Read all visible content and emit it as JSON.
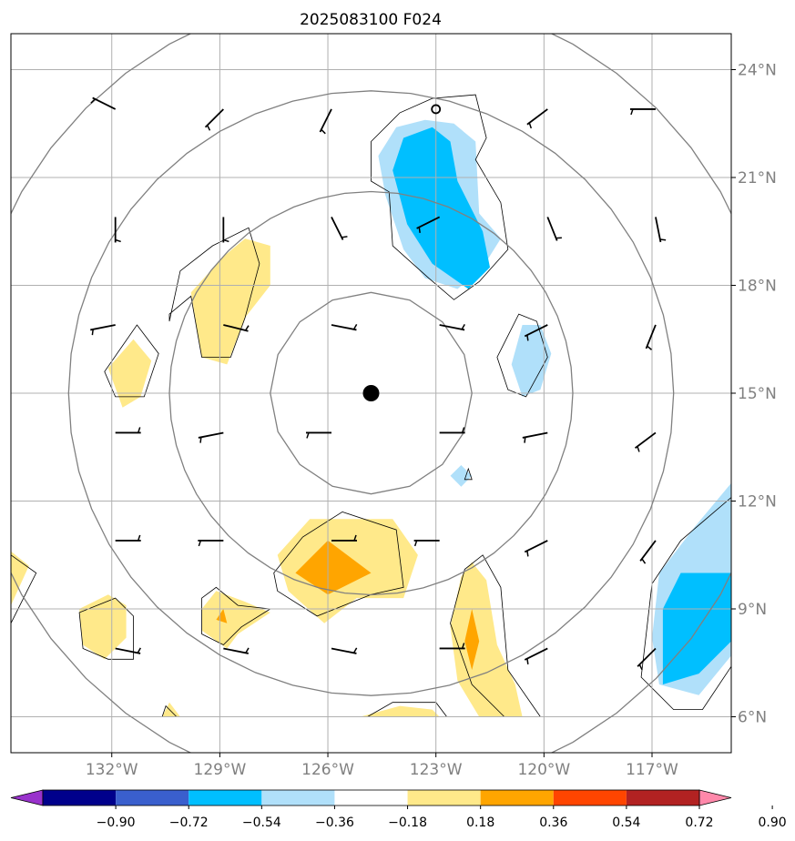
{
  "chart_data": {
    "type": "map-contour",
    "title": "2025083100 F024",
    "xlim": [
      -134.8,
      -114.8
    ],
    "ylim": [
      5.0,
      25.0
    ],
    "lon_ticks": [
      -132,
      -129,
      -126,
      -123,
      -120,
      -117
    ],
    "lon_tick_labels": [
      "132°W",
      "129°W",
      "126°W",
      "123°W",
      "120°W",
      "117°W"
    ],
    "lat_ticks": [
      6,
      9,
      12,
      15,
      18,
      21,
      24
    ],
    "lat_tick_labels": [
      "6°N",
      "9°N",
      "12°N",
      "15°N",
      "18°N",
      "21°N",
      "24°N"
    ],
    "grid": true,
    "center": {
      "lon": -124.8,
      "lat": 15.0
    },
    "range_ring_radii_deg": [
      2.8,
      5.6,
      8.4,
      11.2
    ],
    "storm_track": [
      {
        "lon": -123.0,
        "lat": 22.9
      }
    ],
    "colorbar": {
      "levels": [
        -0.9,
        -0.72,
        -0.54,
        -0.36,
        -0.18,
        0.18,
        0.36,
        0.54,
        0.72,
        0.9
      ],
      "labels": [
        "−0.90",
        "−0.72",
        "−0.54",
        "−0.36",
        "−0.18",
        "0.18",
        "0.36",
        "0.54",
        "0.72",
        "0.90"
      ],
      "colors": [
        "#9932cc",
        "#00008b",
        "#3a5fcd",
        "#00bfff",
        "#b0e0fa",
        "#ffffff",
        "#ffe98a",
        "#ffa500",
        "#ff4500",
        "#b22222",
        "#ff88aa"
      ]
    },
    "regions": [
      {
        "level": 4,
        "pts": [
          [
            -123.3,
            22.6
          ],
          [
            -122.5,
            22.5
          ],
          [
            -121.9,
            22.0
          ],
          [
            -121.8,
            20.0
          ],
          [
            -121.2,
            19.3
          ],
          [
            -121.7,
            18.5
          ],
          [
            -122.4,
            17.9
          ],
          [
            -123.3,
            18.2
          ],
          [
            -123.9,
            19.0
          ],
          [
            -124.4,
            20.5
          ],
          [
            -124.6,
            21.6
          ],
          [
            -124.1,
            22.4
          ]
        ]
      },
      {
        "level": 3,
        "pts": [
          [
            -123.1,
            22.4
          ],
          [
            -122.6,
            22.0
          ],
          [
            -122.4,
            20.9
          ],
          [
            -121.7,
            19.5
          ],
          [
            -121.5,
            18.5
          ],
          [
            -122.1,
            17.9
          ],
          [
            -123.1,
            18.6
          ],
          [
            -123.8,
            19.7
          ],
          [
            -124.2,
            21.2
          ],
          [
            -123.9,
            22.1
          ]
        ]
      },
      {
        "level": 4,
        "pts": [
          [
            -120.6,
            16.9
          ],
          [
            -120.1,
            16.9
          ],
          [
            -119.8,
            16.1
          ],
          [
            -120.1,
            15.1
          ],
          [
            -120.6,
            14.9
          ],
          [
            -120.9,
            15.8
          ]
        ]
      },
      {
        "level": 4,
        "pts": [
          [
            -122.3,
            13.0
          ],
          [
            -122.0,
            12.7
          ],
          [
            -122.3,
            12.4
          ],
          [
            -122.6,
            12.7
          ]
        ]
      },
      {
        "level": 4,
        "pts": [
          [
            -114.8,
            12.5
          ],
          [
            -115.8,
            11.3
          ],
          [
            -116.8,
            10.0
          ],
          [
            -117.0,
            8.2
          ],
          [
            -116.8,
            6.9
          ],
          [
            -115.7,
            6.6
          ],
          [
            -114.8,
            7.7
          ]
        ]
      },
      {
        "level": 3,
        "pts": [
          [
            -114.8,
            10.0
          ],
          [
            -116.2,
            10.0
          ],
          [
            -116.7,
            9.0
          ],
          [
            -116.7,
            6.9
          ],
          [
            -115.7,
            7.2
          ],
          [
            -114.8,
            8.1
          ]
        ]
      },
      {
        "level": 6,
        "pts": [
          [
            -128.3,
            19.3
          ],
          [
            -127.6,
            19.1
          ],
          [
            -127.6,
            18.0
          ],
          [
            -128.3,
            17.1
          ],
          [
            -128.8,
            15.8
          ],
          [
            -129.5,
            16.0
          ],
          [
            -129.8,
            17.8
          ],
          [
            -128.9,
            18.8
          ]
        ]
      },
      {
        "level": 6,
        "pts": [
          [
            -131.4,
            16.5
          ],
          [
            -130.9,
            15.9
          ],
          [
            -131.2,
            14.9
          ],
          [
            -131.7,
            14.6
          ],
          [
            -132.1,
            15.7
          ]
        ]
      },
      {
        "level": 6,
        "pts": [
          [
            -126.5,
            11.5
          ],
          [
            -124.2,
            11.5
          ],
          [
            -123.5,
            10.5
          ],
          [
            -123.9,
            9.3
          ],
          [
            -125.2,
            9.3
          ],
          [
            -126.1,
            8.6
          ],
          [
            -127.1,
            9.5
          ],
          [
            -127.4,
            10.5
          ]
        ]
      },
      {
        "level": 7,
        "pts": [
          [
            -126.0,
            10.9
          ],
          [
            -124.8,
            10.0
          ],
          [
            -126.0,
            9.4
          ],
          [
            -126.9,
            10.0
          ]
        ]
      },
      {
        "level": 6,
        "pts": [
          [
            -122.0,
            10.3
          ],
          [
            -121.6,
            9.8
          ],
          [
            -121.3,
            8.0
          ],
          [
            -120.8,
            6.9
          ],
          [
            -120.6,
            6.0
          ],
          [
            -121.8,
            6.0
          ],
          [
            -122.4,
            7.0
          ],
          [
            -122.6,
            8.5
          ],
          [
            -122.3,
            9.9
          ]
        ]
      },
      {
        "level": 7,
        "pts": [
          [
            -122.0,
            9.0
          ],
          [
            -121.8,
            8.1
          ],
          [
            -122.0,
            7.3
          ],
          [
            -122.2,
            8.1
          ]
        ]
      },
      {
        "level": 6,
        "pts": [
          [
            -129.1,
            9.5
          ],
          [
            -128.3,
            9.2
          ],
          [
            -127.6,
            8.9
          ],
          [
            -128.5,
            8.3
          ],
          [
            -128.8,
            7.9
          ],
          [
            -129.5,
            8.4
          ],
          [
            -129.5,
            9.0
          ]
        ]
      },
      {
        "level": 7,
        "pts": [
          [
            -128.9,
            9.0
          ],
          [
            -128.8,
            8.6
          ],
          [
            -129.1,
            8.7
          ]
        ]
      },
      {
        "level": 6,
        "pts": [
          [
            -132.1,
            9.4
          ],
          [
            -131.6,
            9.1
          ],
          [
            -131.6,
            8.2
          ],
          [
            -132.2,
            7.6
          ],
          [
            -132.8,
            8.0
          ],
          [
            -132.9,
            9.0
          ]
        ]
      },
      {
        "level": 6,
        "pts": [
          [
            -134.8,
            10.6
          ],
          [
            -134.3,
            10.2
          ],
          [
            -134.8,
            9.1
          ]
        ]
      },
      {
        "level": 6,
        "pts": [
          [
            -125.1,
            6.0
          ],
          [
            -124.0,
            6.3
          ],
          [
            -123.1,
            6.2
          ],
          [
            -122.9,
            6.0
          ]
        ]
      },
      {
        "level": 6,
        "pts": [
          [
            -130.6,
            6.0
          ],
          [
            -130.4,
            6.4
          ],
          [
            -130.1,
            6.0
          ]
        ]
      }
    ],
    "contours": [
      [
        [
          -123.1,
          23.2
        ],
        [
          -121.9,
          23.3
        ],
        [
          -121.6,
          22.1
        ],
        [
          -121.9,
          21.5
        ],
        [
          -121.2,
          20.3
        ],
        [
          -121.0,
          19.0
        ],
        [
          -121.8,
          18.1
        ],
        [
          -122.5,
          17.6
        ],
        [
          -123.2,
          18.2
        ],
        [
          -124.2,
          19.1
        ],
        [
          -124.3,
          20.6
        ],
        [
          -124.8,
          20.9
        ],
        [
          -124.8,
          22.0
        ],
        [
          -124.0,
          22.8
        ]
      ],
      [
        [
          -120.7,
          17.2
        ],
        [
          -120.2,
          17.0
        ],
        [
          -119.9,
          16.0
        ],
        [
          -120.5,
          14.9
        ],
        [
          -121.0,
          15.1
        ],
        [
          -121.3,
          16.0
        ]
      ],
      [
        [
          -122.1,
          12.9
        ],
        [
          -122.0,
          12.6
        ],
        [
          -122.2,
          12.6
        ]
      ],
      [
        [
          -114.8,
          12.1
        ],
        [
          -116.2,
          10.9
        ],
        [
          -117.0,
          9.7
        ],
        [
          -117.3,
          7.1
        ],
        [
          -116.4,
          6.2
        ],
        [
          -115.6,
          6.2
        ],
        [
          -114.8,
          7.4
        ]
      ],
      [
        [
          -128.2,
          19.6
        ],
        [
          -127.9,
          18.6
        ],
        [
          -128.3,
          17.1
        ],
        [
          -128.7,
          16.0
        ],
        [
          -129.5,
          16.0
        ],
        [
          -129.8,
          17.7
        ],
        [
          -130.4,
          17.2
        ],
        [
          -130.4,
          17.0
        ],
        [
          -130.1,
          18.4
        ],
        [
          -129.2,
          19.1
        ]
      ],
      [
        [
          -131.3,
          16.9
        ],
        [
          -130.7,
          16.1
        ],
        [
          -131.1,
          14.9
        ],
        [
          -131.9,
          14.9
        ],
        [
          -132.2,
          15.6
        ]
      ],
      [
        [
          -125.6,
          11.7
        ],
        [
          -124.1,
          11.2
        ],
        [
          -123.9,
          9.6
        ],
        [
          -124.8,
          9.4
        ],
        [
          -126.3,
          8.8
        ],
        [
          -127.4,
          9.5
        ],
        [
          -127.5,
          10.0
        ],
        [
          -126.7,
          11.0
        ]
      ],
      [
        [
          -121.7,
          10.5
        ],
        [
          -121.2,
          9.6
        ],
        [
          -121.0,
          7.3
        ],
        [
          -120.1,
          6.0
        ],
        [
          -121.1,
          6.0
        ],
        [
          -122.0,
          6.9
        ],
        [
          -122.6,
          8.6
        ],
        [
          -122.2,
          10.1
        ]
      ],
      [
        [
          -129.1,
          9.6
        ],
        [
          -128.5,
          9.1
        ],
        [
          -127.6,
          9.0
        ],
        [
          -128.4,
          8.5
        ],
        [
          -128.9,
          8.0
        ],
        [
          -129.5,
          8.3
        ],
        [
          -129.5,
          9.3
        ]
      ],
      [
        [
          -131.9,
          9.3
        ],
        [
          -131.4,
          8.8
        ],
        [
          -131.4,
          7.6
        ],
        [
          -132.1,
          7.6
        ],
        [
          -132.8,
          7.9
        ],
        [
          -132.9,
          8.9
        ]
      ],
      [
        [
          -134.8,
          10.5
        ],
        [
          -134.1,
          10.0
        ],
        [
          -134.4,
          9.4
        ],
        [
          -134.8,
          8.6
        ]
      ],
      [
        [
          -124.2,
          6.4
        ],
        [
          -123.0,
          6.4
        ],
        [
          -122.7,
          6.0
        ],
        [
          -124.9,
          6.0
        ]
      ],
      [
        [
          -130.2,
          6.0
        ],
        [
          -130.5,
          6.3
        ],
        [
          -130.6,
          6.0
        ]
      ]
    ],
    "barbs": [
      {
        "lon": -131.9,
        "lat": 22.9,
        "u": 4,
        "v": -2
      },
      {
        "lon": -128.9,
        "lat": 22.9,
        "u": 4,
        "v": 4
      },
      {
        "lon": -125.9,
        "lat": 22.9,
        "u": 2,
        "v": 4
      },
      {
        "lon": -119.9,
        "lat": 22.9,
        "u": 4,
        "v": 3
      },
      {
        "lon": -116.9,
        "lat": 22.9,
        "u": 5,
        "v": 0
      },
      {
        "lon": -131.9,
        "lat": 19.9,
        "u": 0,
        "v": 5
      },
      {
        "lon": -128.9,
        "lat": 19.9,
        "u": 0,
        "v": 5
      },
      {
        "lon": -125.9,
        "lat": 19.9,
        "u": -2,
        "v": 4
      },
      {
        "lon": -122.9,
        "lat": 19.9,
        "u": 4,
        "v": 2
      },
      {
        "lon": -119.9,
        "lat": 19.9,
        "u": -2,
        "v": 5
      },
      {
        "lon": -116.9,
        "lat": 19.9,
        "u": -1,
        "v": 5
      },
      {
        "lon": -131.9,
        "lat": 16.9,
        "u": 5,
        "v": 1
      },
      {
        "lon": -128.9,
        "lat": 16.9,
        "u": -4,
        "v": 1
      },
      {
        "lon": -125.9,
        "lat": 16.9,
        "u": -5,
        "v": 1
      },
      {
        "lon": -122.9,
        "lat": 16.9,
        "u": -5,
        "v": 1
      },
      {
        "lon": -119.9,
        "lat": 16.9,
        "u": 4,
        "v": 2
      },
      {
        "lon": -116.9,
        "lat": 16.9,
        "u": 2,
        "v": 5
      },
      {
        "lon": -131.9,
        "lat": 13.9,
        "u": -5,
        "v": 0
      },
      {
        "lon": -128.9,
        "lat": 13.9,
        "u": 5,
        "v": 1
      },
      {
        "lon": -125.9,
        "lat": 13.9,
        "u": 5,
        "v": 0
      },
      {
        "lon": -122.9,
        "lat": 13.9,
        "u": -5,
        "v": 0
      },
      {
        "lon": -119.9,
        "lat": 13.9,
        "u": 5,
        "v": 1
      },
      {
        "lon": -116.9,
        "lat": 13.9,
        "u": 4,
        "v": 3
      },
      {
        "lon": -131.9,
        "lat": 10.9,
        "u": -5,
        "v": 0
      },
      {
        "lon": -128.9,
        "lat": 10.9,
        "u": 5,
        "v": 0
      },
      {
        "lon": -125.9,
        "lat": 10.9,
        "u": -5,
        "v": 0
      },
      {
        "lon": -122.9,
        "lat": 10.9,
        "u": 5,
        "v": 0
      },
      {
        "lon": -119.9,
        "lat": 10.9,
        "u": 4,
        "v": 2
      },
      {
        "lon": -116.9,
        "lat": 10.9,
        "u": 3,
        "v": 4
      },
      {
        "lon": -131.9,
        "lat": 7.9,
        "u": -5,
        "v": 1
      },
      {
        "lon": -128.9,
        "lat": 7.9,
        "u": -5,
        "v": 1
      },
      {
        "lon": -125.9,
        "lat": 7.9,
        "u": -5,
        "v": 1
      },
      {
        "lon": -122.9,
        "lat": 7.9,
        "u": -5,
        "v": 0
      },
      {
        "lon": -119.9,
        "lat": 7.9,
        "u": 4,
        "v": 2
      },
      {
        "lon": -116.9,
        "lat": 7.9,
        "u": 3,
        "v": 3
      }
    ]
  }
}
